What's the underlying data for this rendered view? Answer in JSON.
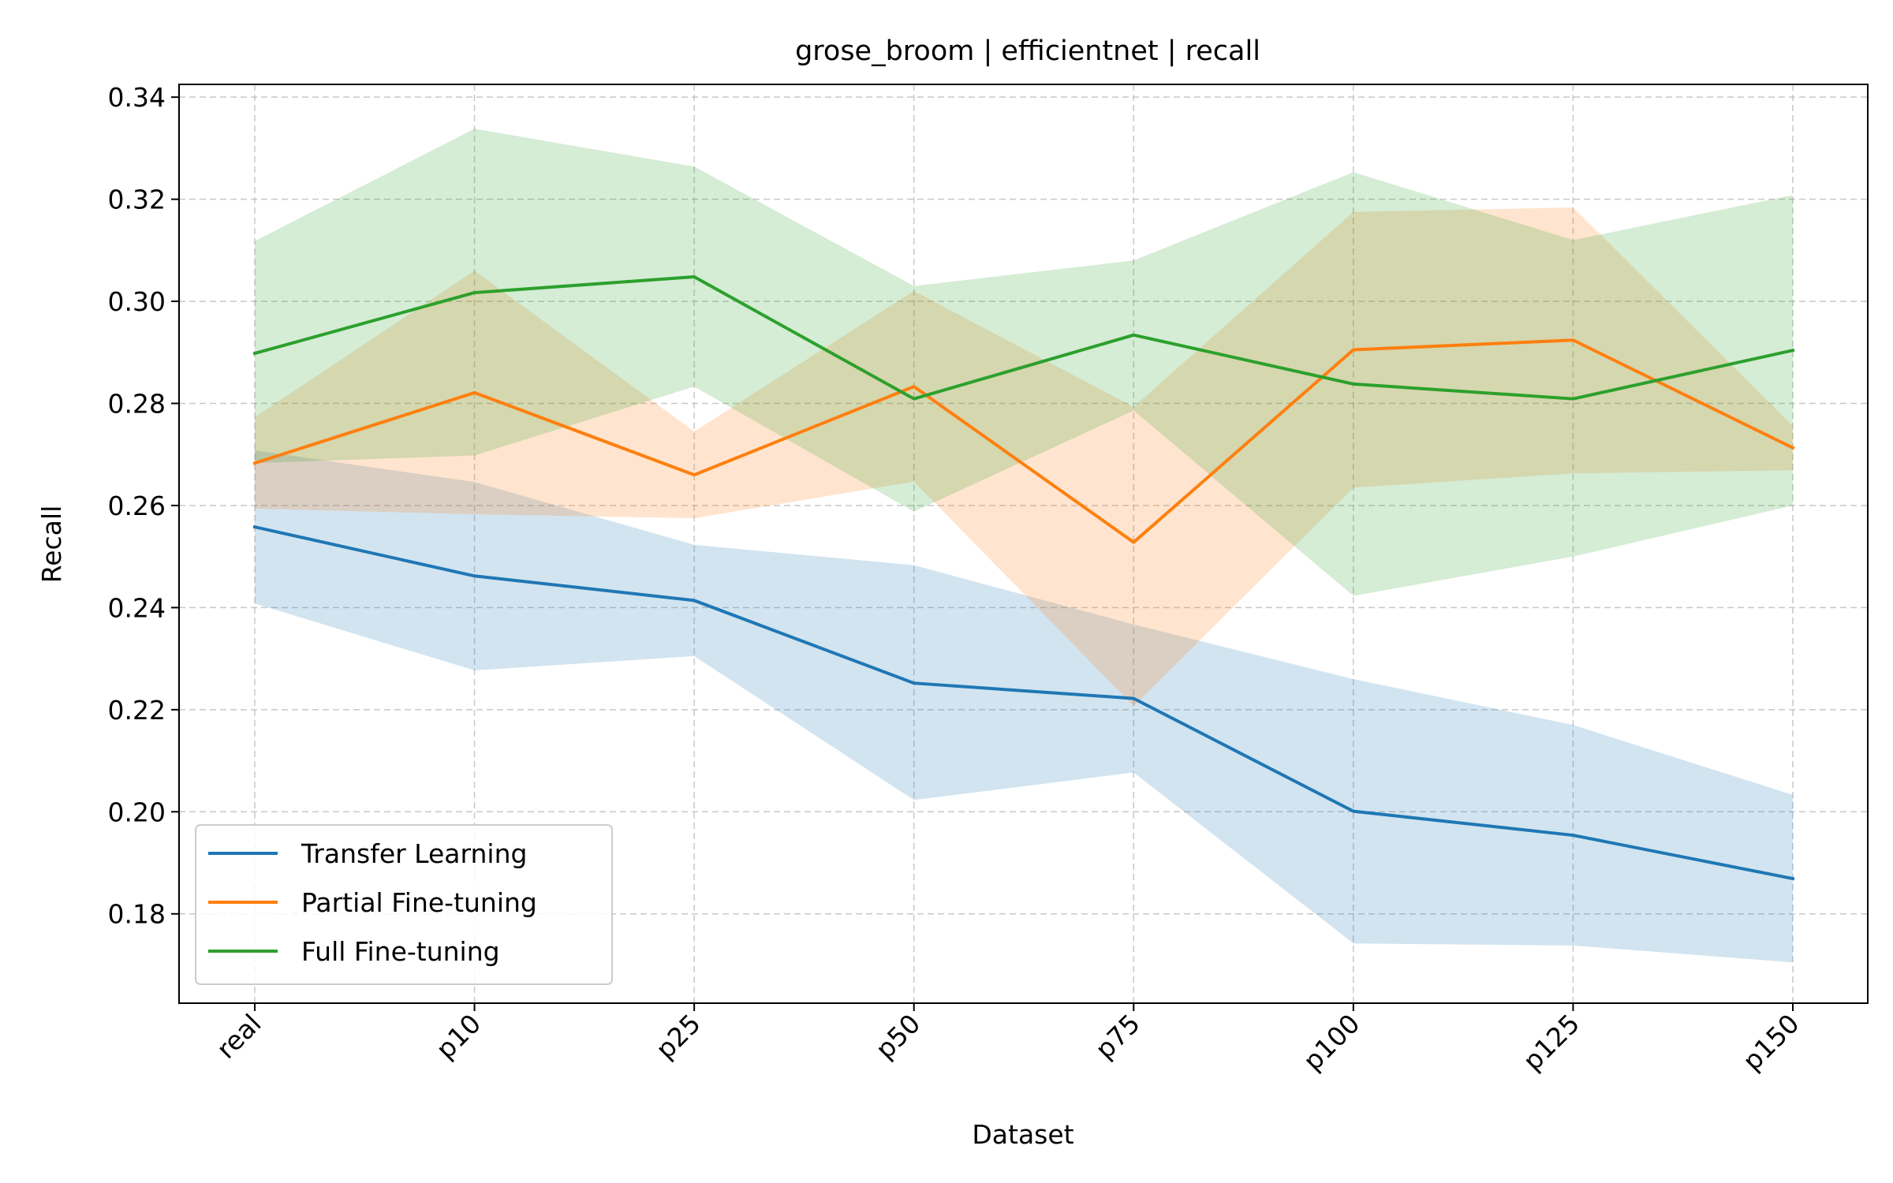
{
  "chart_data": {
    "type": "line",
    "title": "grose_broom | efficientnet | recall",
    "xlabel": "Dataset",
    "ylabel": "Recall",
    "categories": [
      "real",
      "p10",
      "p25",
      "p50",
      "p75",
      "p100",
      "p125",
      "p150"
    ],
    "ylim": [
      0.1625,
      0.3425
    ],
    "yticks": [
      "0.18",
      "0.20",
      "0.22",
      "0.24",
      "0.26",
      "0.28",
      "0.30",
      "0.32",
      "0.34"
    ],
    "grid": true,
    "legend_position": "lower-left",
    "series": [
      {
        "name": "Transfer Learning",
        "color": "#1f77b4",
        "values": [
          0.2558,
          0.2462,
          0.2414,
          0.2252,
          0.2222,
          0.2001,
          0.1954,
          0.1869
        ],
        "lower": [
          0.2408,
          0.2277,
          0.2305,
          0.2023,
          0.2077,
          0.1742,
          0.1738,
          0.1705
        ],
        "upper": [
          0.2708,
          0.2646,
          0.2523,
          0.2483,
          0.2367,
          0.226,
          0.217,
          0.2033
        ]
      },
      {
        "name": "Partial Fine-tuning",
        "color": "#ff7f0e",
        "values": [
          0.2683,
          0.2821,
          0.266,
          0.2833,
          0.2528,
          0.2905,
          0.2924,
          0.2713
        ],
        "lower": [
          0.2594,
          0.2583,
          0.2575,
          0.2647,
          0.2207,
          0.2635,
          0.2663,
          0.2669
        ],
        "upper": [
          0.2773,
          0.306,
          0.2745,
          0.302,
          0.2793,
          0.3175,
          0.3184,
          0.2756
        ]
      },
      {
        "name": "Full Fine-tuning",
        "color": "#2ca02c",
        "values": [
          0.2898,
          0.3017,
          0.3048,
          0.2809,
          0.2934,
          0.2838,
          0.2809,
          0.2904
        ],
        "lower": [
          0.2683,
          0.2698,
          0.2833,
          0.2588,
          0.2786,
          0.2423,
          0.25,
          0.26
        ],
        "upper": [
          0.3118,
          0.3338,
          0.3264,
          0.303,
          0.308,
          0.3253,
          0.312,
          0.3208
        ]
      }
    ]
  }
}
